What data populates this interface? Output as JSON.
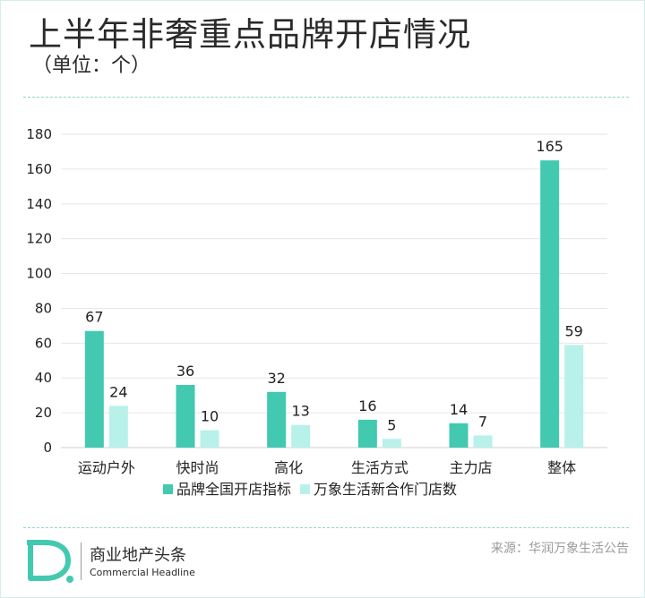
{
  "header": {
    "title": "上半年非奢重点品牌开店情况",
    "subtitle": "（单位：个）"
  },
  "chart_data": {
    "type": "bar",
    "categories": [
      "运动户外",
      "快时尚",
      "高化",
      "生活方式",
      "主力店",
      "整体"
    ],
    "series": [
      {
        "name": "品牌全国开店指标",
        "color": "#42c9b0",
        "values": [
          67,
          36,
          32,
          16,
          14,
          165
        ]
      },
      {
        "name": "万象生活新合作门店数",
        "color": "#b8f1ea",
        "values": [
          24,
          10,
          13,
          5,
          7,
          59
        ]
      }
    ],
    "ylim": [
      0,
      180
    ],
    "yticks": [
      0,
      20,
      40,
      60,
      80,
      100,
      120,
      140,
      160,
      180
    ],
    "grid": true,
    "legend": "bottom"
  },
  "footer": {
    "logo_letter": "D",
    "brand_cn": "商业地产头条",
    "brand_en": "Commercial Headline",
    "source": "来源：华润万象生活公告"
  },
  "colors": {
    "accent": "#42c9b0",
    "accent_light": "#b8f1ea",
    "divider": "#8fd6c8"
  }
}
